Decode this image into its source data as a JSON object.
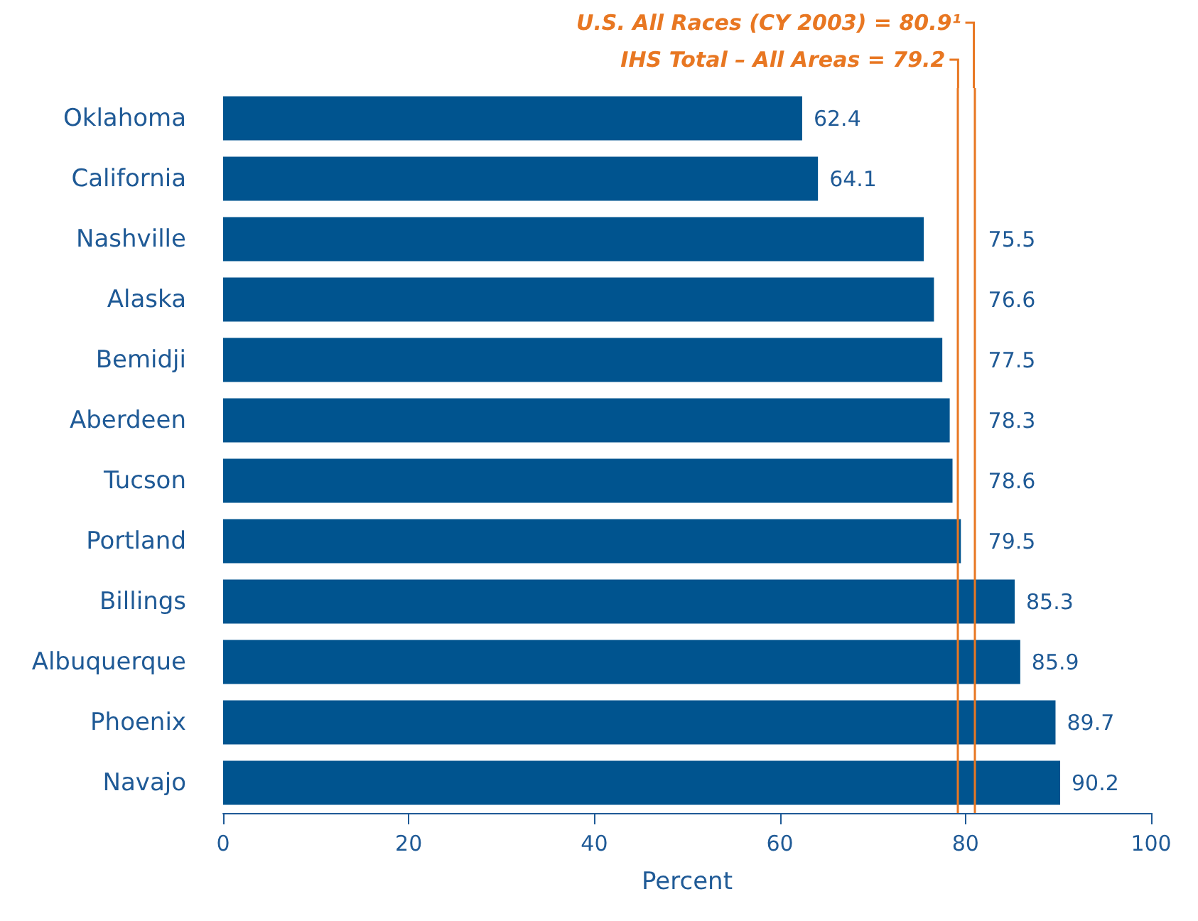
{
  "chart_data": {
    "type": "bar",
    "orientation": "horizontal",
    "xlabel": "Percent",
    "categories": [
      "Oklahoma",
      "California",
      "Nashville",
      "Alaska",
      "Bemidji",
      "Aberdeen",
      "Tucson",
      "Portland",
      "Billings",
      "Albuquerque",
      "Phoenix",
      "Navajo"
    ],
    "values": [
      62.4,
      64.1,
      75.5,
      76.6,
      77.5,
      78.3,
      78.6,
      79.5,
      85.3,
      85.9,
      89.7,
      90.2
    ],
    "color": "#00548f",
    "data_labels": true,
    "xlim": [
      0,
      100
    ],
    "xticks": [
      0,
      20,
      40,
      60,
      80,
      100
    ],
    "grid": false,
    "ref_lines": [
      {
        "axis": "x",
        "value": 80.9,
        "label": "U.S. All Races (CY 2003) = 80.9¹",
        "color": "#e87722"
      },
      {
        "axis": "x",
        "value": 79.2,
        "label": "IHS Total – All Areas = 79.2",
        "color": "#e87722"
      }
    ]
  }
}
